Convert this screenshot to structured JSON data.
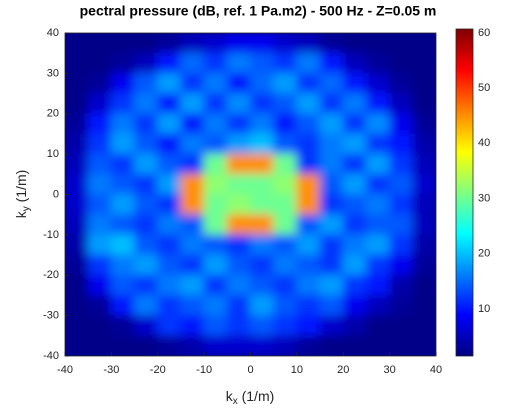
{
  "chart_data": {
    "type": "heatmap",
    "title": "pectral pressure (dB, ref. 1 Pa.m2) - 500 Hz - Z=0.05 m",
    "xlabel": {
      "base": "k",
      "sub": "x",
      "rest": " (1/m)"
    },
    "ylabel": {
      "base": "k",
      "sub": "y",
      "rest": " (1/m)"
    },
    "colormap": "jet",
    "xlim": [
      -40,
      40
    ],
    "ylim": [
      -40,
      40
    ],
    "xticks": [
      -40,
      -30,
      -20,
      -10,
      0,
      10,
      20,
      30,
      40
    ],
    "yticks": [
      -40,
      -30,
      -20,
      -10,
      0,
      10,
      20,
      30,
      40
    ],
    "clim": [
      1.5,
      60.7
    ],
    "cticks": [
      10,
      20,
      30,
      40,
      50,
      60
    ],
    "x": [
      -37.5,
      -32.5,
      -27.5,
      -22.5,
      -17.5,
      -12.5,
      -7.5,
      -2.5,
      2.5,
      7.5,
      12.5,
      17.5,
      22.5,
      27.5,
      32.5,
      37.5
    ],
    "y": [
      37.5,
      32.5,
      27.5,
      22.5,
      17.5,
      12.5,
      7.5,
      2.5,
      -2.5,
      -7.5,
      -12.5,
      -17.5,
      -22.5,
      -27.5,
      -32.5,
      -37.5
    ],
    "z": [
      [
        2,
        2,
        2,
        2,
        3,
        5,
        6,
        8,
        8,
        6,
        5,
        3,
        2,
        2,
        2,
        2
      ],
      [
        2,
        2,
        3,
        5,
        10,
        15,
        12,
        16,
        14,
        12,
        16,
        10,
        5,
        3,
        2,
        2
      ],
      [
        2,
        3,
        8,
        14,
        18,
        12,
        16,
        10,
        15,
        18,
        12,
        15,
        10,
        6,
        3,
        2
      ],
      [
        2,
        6,
        12,
        16,
        10,
        18,
        12,
        17,
        12,
        14,
        18,
        12,
        16,
        10,
        5,
        2
      ],
      [
        3,
        10,
        16,
        12,
        18,
        10,
        16,
        12,
        16,
        10,
        14,
        18,
        12,
        17,
        8,
        3
      ],
      [
        4,
        12,
        18,
        14,
        10,
        16,
        14,
        18,
        20,
        14,
        12,
        16,
        18,
        12,
        10,
        4
      ],
      [
        5,
        14,
        12,
        18,
        14,
        12,
        30,
        45,
        45,
        30,
        12,
        16,
        12,
        18,
        12,
        5
      ],
      [
        6,
        16,
        14,
        12,
        18,
        45,
        32,
        30,
        30,
        32,
        45,
        14,
        18,
        12,
        14,
        6
      ],
      [
        6,
        14,
        18,
        14,
        12,
        45,
        30,
        32,
        30,
        30,
        45,
        12,
        14,
        16,
        12,
        5
      ],
      [
        5,
        16,
        14,
        12,
        16,
        14,
        30,
        45,
        45,
        30,
        14,
        18,
        12,
        14,
        14,
        5
      ],
      [
        4,
        18,
        20,
        14,
        12,
        16,
        14,
        12,
        16,
        14,
        18,
        12,
        16,
        18,
        12,
        4
      ],
      [
        3,
        12,
        16,
        18,
        14,
        12,
        18,
        14,
        12,
        16,
        14,
        12,
        18,
        12,
        8,
        3
      ],
      [
        2,
        8,
        14,
        12,
        16,
        18,
        12,
        16,
        14,
        12,
        16,
        18,
        12,
        10,
        4,
        2
      ],
      [
        2,
        3,
        10,
        16,
        12,
        14,
        16,
        12,
        18,
        14,
        12,
        14,
        8,
        5,
        3,
        2
      ],
      [
        2,
        2,
        3,
        6,
        12,
        10,
        14,
        12,
        14,
        12,
        10,
        6,
        4,
        2,
        2,
        2
      ],
      [
        2,
        2,
        2,
        2,
        3,
        4,
        6,
        6,
        6,
        5,
        3,
        2,
        2,
        2,
        2,
        2
      ]
    ]
  }
}
